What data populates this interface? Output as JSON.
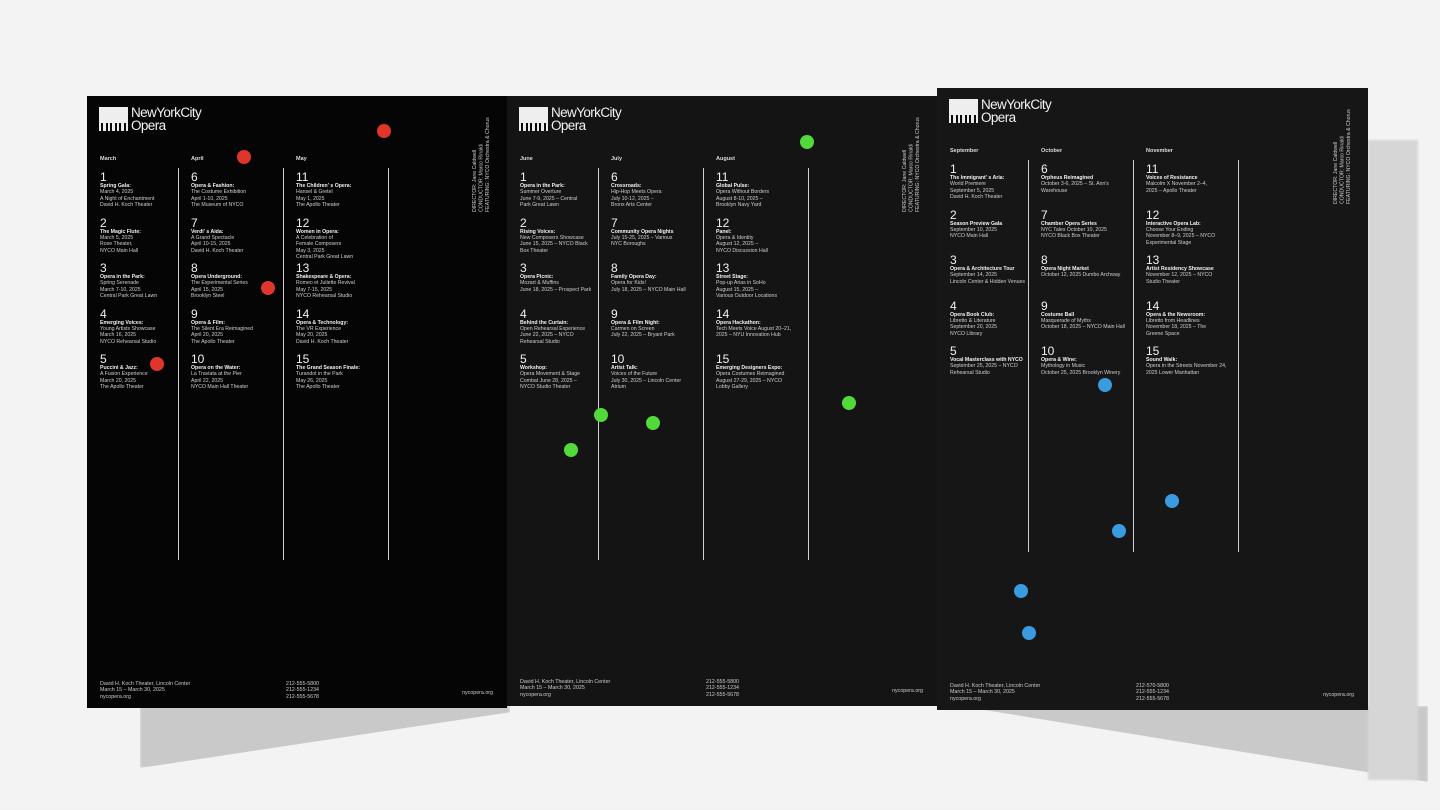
{
  "brand": {
    "line1": "NewYorkCity",
    "line2": "Opera"
  },
  "colors": {
    "panel1_dots": "#e0352b",
    "panel2_dots": "#52d93a",
    "panel3_dots": "#3a9be0"
  },
  "panels": [
    {
      "credits": [
        "DIRECTOR: Jane Caldwell",
        "CONDUCTOR: Marco Rinaldi",
        "FEATURING: NYCO Orchestra & Chorus"
      ],
      "footer": {
        "address": [
          "David H. Koch Theater, Lincoln Center",
          "March 15 – March 30, 2025",
          "nycopera.org"
        ],
        "phones": [
          "212-555-5800",
          "212-555-1234",
          "212-555-5678"
        ],
        "site": "nycopera.org"
      },
      "columns": [
        {
          "month": "March",
          "events": [
            {
              "num": "1",
              "title": "Spring Gala:",
              "lines": [
                "March 4, 2025",
                "A Night of Enchantment",
                "David H. Koch Theater"
              ]
            },
            {
              "num": "2",
              "title": "The Magic Flute:",
              "lines": [
                "March 5, 2025",
                "Rose Theater,",
                "NYCO Main Hall"
              ]
            },
            {
              "num": "3",
              "title": "Opera in the Park:",
              "lines": [
                "Spring Serenade",
                "March 7-10, 2025",
                "Central Park Great Lawn"
              ]
            },
            {
              "num": "4",
              "title": "Emerging Voices:",
              "lines": [
                "Young Artists Showcase",
                "March 16, 2025",
                "NYCO Rehearsal Studio"
              ]
            },
            {
              "num": "5",
              "title": "Puccini & Jazz:",
              "lines": [
                "A Fusion Experience",
                "March 20, 2025",
                "The Apollo Theater"
              ]
            }
          ]
        },
        {
          "month": "April",
          "events": [
            {
              "num": "6",
              "title": "Opera & Fashion:",
              "lines": [
                "The Costume Exhibition",
                "April 1-10, 2025",
                "The Museum of NYCO"
              ]
            },
            {
              "num": "7",
              "title": "Verdi' s Aida:",
              "lines": [
                "A Grand Spectacle",
                "April 10-15, 2025",
                "David H. Koch Theater"
              ]
            },
            {
              "num": "8",
              "title": "Opera Underground:",
              "lines": [
                "The Experimental Series",
                "April 15, 2025",
                "Brooklyn Steel"
              ]
            },
            {
              "num": "9",
              "title": "Opera & Film:",
              "lines": [
                "The Silent Era Reimagined",
                "April 20, 2025",
                "The Apollo Theater"
              ]
            },
            {
              "num": "10",
              "title": "Opera on the Water:",
              "lines": [
                "La Traviata at the Pier",
                "April 22, 2025",
                "NYCO Main Hall Theater"
              ]
            }
          ]
        },
        {
          "month": "May",
          "events": [
            {
              "num": "11",
              "title": "The Children' s Opera:",
              "lines": [
                "Hansel & Gretel",
                "May 1, 2025",
                "The Apollo Theater"
              ]
            },
            {
              "num": "12",
              "title": "Women in Opera:",
              "lines": [
                "A Celebration of",
                "Female Composers",
                "May 3, 2025",
                "Central Park Great Lawn"
              ]
            },
            {
              "num": "13",
              "title": "Shakespeare & Opera:",
              "lines": [
                "Romeo et Juliette Revival",
                "May 7-15, 2025",
                "NYCO Rehearsal Studio"
              ]
            },
            {
              "num": "14",
              "title": "Opera & Technology:",
              "lines": [
                "The VR Experience",
                "May 20, 2025",
                "David H. Koch Theater"
              ]
            },
            {
              "num": "15",
              "title": "The Grand Season Finale:",
              "lines": [
                "Turandot in the Park",
                "May 26, 2025",
                "The Apollo Theater"
              ]
            }
          ]
        }
      ]
    },
    {
      "credits": [
        "DIRECTOR: Jane Caldwell",
        "CONDUCTOR: Marco Rinaldi",
        "FEATURING: NYCO Orchestra & Chorus"
      ],
      "footer": {
        "address": [
          "David H. Koch Theater, Lincoln Center",
          "March 15 – March 30, 2025",
          "nycopera.org"
        ],
        "phones": [
          "212-555-5800",
          "212-555-1234",
          "212-555-5678"
        ],
        "site": "nycopera.org"
      },
      "columns": [
        {
          "month": "June",
          "events": [
            {
              "num": "1",
              "title": "Opera in the Park:",
              "lines": [
                "Summer Overture",
                "June 7-9, 2025 – Central",
                "Park Great Lawn"
              ]
            },
            {
              "num": "2",
              "title": "Rising Voices:",
              "lines": [
                "New Composers Showcase",
                "June 15, 2025 – NYCO Black",
                "Box Theater"
              ]
            },
            {
              "num": "3",
              "title": "Opera Picnic:",
              "lines": [
                "Mozart & Muffins",
                "June 18, 2025 – Prospect Park"
              ]
            },
            {
              "num": "4",
              "title": "Behind the Curtain:",
              "lines": [
                "Open Rehearsal Experience",
                "June 22, 2025 – NYCO",
                "Rehearsal Studio"
              ]
            },
            {
              "num": "5",
              "title": "Workshop:",
              "lines": [
                "Opera Movement & Stage",
                "Combat June 28, 2025 –",
                "NYCO Studio Theater"
              ]
            }
          ]
        },
        {
          "month": "July",
          "events": [
            {
              "num": "6",
              "title": "Crossroads:",
              "lines": [
                "Hip-Hop Meets Opera",
                "July 10-12, 2025 –",
                "Bronx Arts Center"
              ]
            },
            {
              "num": "7",
              "title": "Community Opera Nights",
              "lines": [
                "July 15-25, 2025 – Various",
                "NYC Boroughs"
              ]
            },
            {
              "num": "8",
              "title": "Family Opera Day:",
              "lines": [
                "Opera for Kids!",
                "July 18, 2025 – NYCO Main Hall"
              ]
            },
            {
              "num": "9",
              "title": "Opera & Film Night:",
              "lines": [
                "Carmen on Screen",
                "July 22, 2025 – Bryant Park"
              ]
            },
            {
              "num": "10",
              "title": "Artist Talk:",
              "lines": [
                "Voices of the Future",
                "July 30, 2025 – Lincoln Center Atrium"
              ]
            }
          ]
        },
        {
          "month": "August",
          "events": [
            {
              "num": "11",
              "title": "Global Pulse:",
              "lines": [
                "Opera Without Borders",
                "August 8-10, 2025 –",
                "Brooklyn Navy Yard"
              ]
            },
            {
              "num": "12",
              "title": "Panel:",
              "lines": [
                "Opera & Identity",
                "August 12, 2025 –",
                "NYCO Discussion Hall"
              ]
            },
            {
              "num": "13",
              "title": "Street Stage:",
              "lines": [
                "Pop-up Arias in SoHo",
                "August 15, 2025 –",
                "Various Outdoor Locations"
              ]
            },
            {
              "num": "14",
              "title": "Opera Hackathon:",
              "lines": [
                "Tech Meets Voice August 20–21,",
                "2025 – NYU Innovation Hub"
              ]
            },
            {
              "num": "15",
              "title": "Emerging Designers Expo:",
              "lines": [
                "Opera Costumes Reimagined",
                "August 27-29, 2025 – NYCO",
                "Lobby Gallery"
              ]
            }
          ]
        }
      ]
    },
    {
      "credits": [
        "DIRECTOR: Jane Caldwell",
        "CONDUCTOR: Marco Rinaldi",
        "FEATURING: NYCO Orchestra & Chorus"
      ],
      "footer": {
        "address": [
          "David H. Koch Theater, Lincoln Center",
          "March 15 – March 30, 2025",
          "nycopera.org"
        ],
        "phones": [
          "212-570-5800",
          "212-555-1234",
          "212-555-5678"
        ],
        "site": "nycopera.org"
      },
      "columns": [
        {
          "month": "September",
          "events": [
            {
              "num": "1",
              "title": "The Immigrant' s Aria:",
              "lines": [
                "World Premiere",
                "September 5, 2025",
                "David H. Koch Theater"
              ]
            },
            {
              "num": "2",
              "title": "Season Preview Gala",
              "lines": [
                "September 10, 2025",
                "NYCO Main Hall"
              ]
            },
            {
              "num": "3",
              "title": "Opera & Architecture Tour",
              "lines": [
                "September 14, 2025",
                "Lincoln Center & Hidden Venues"
              ]
            },
            {
              "num": "4",
              "title": "Opera Book Club:",
              "lines": [
                "Libretto & Literature",
                "September 20, 2025",
                "NYCO Library"
              ]
            },
            {
              "num": "5",
              "title": "Vocal Masterclass with NYCO",
              "lines": [
                "September 25, 2025 – NYCO",
                "Rehearsal Studio"
              ]
            }
          ]
        },
        {
          "month": "October",
          "events": [
            {
              "num": "6",
              "title": "Orpheus Reimagined",
              "lines": [
                "October 3-6, 2025 – St. Ann's",
                "Warehouse"
              ]
            },
            {
              "num": "7",
              "title": "Chamber Opera Series",
              "lines": [
                "NYC Tales October 10, 2025",
                "NYCO Black Box Theater"
              ]
            },
            {
              "num": "8",
              "title": "Opera Night Market",
              "lines": [
                "October 12, 2025 Dumbo Archway"
              ]
            },
            {
              "num": "9",
              "title": "Costume Ball",
              "lines": [
                "Masquerade of Myths",
                "October 18, 2025 – NYCO Main Hall"
              ]
            },
            {
              "num": "10",
              "title": "Opera & Wine:",
              "lines": [
                "Mythology in Music",
                "October 25, 2025 Brooklyn Winery"
              ]
            }
          ]
        },
        {
          "month": "November",
          "events": [
            {
              "num": "11",
              "title": "Voices of Resistance",
              "lines": [
                "Malcolm X November 2–4,",
                "2025 – Apollo Theater"
              ]
            },
            {
              "num": "12",
              "title": "Interactive Opera Lab:",
              "lines": [
                "Choose Your Ending",
                "November 8–9, 2025 – NYCO",
                "Experimental Stage"
              ]
            },
            {
              "num": "13",
              "title": "Artist Residency Showcase",
              "lines": [
                "November 12, 2025 – NYCO",
                "Studio Theater"
              ]
            },
            {
              "num": "14",
              "title": "Opera & the Newsroom:",
              "lines": [
                "Libretto from Headlines",
                "November 18, 2025 – The",
                "Greene Space"
              ]
            },
            {
              "num": "15",
              "title": "Sound Walk:",
              "lines": [
                "Opera in the Streets November 24,",
                "2025 Lower Manhattan"
              ]
            }
          ]
        }
      ]
    }
  ]
}
